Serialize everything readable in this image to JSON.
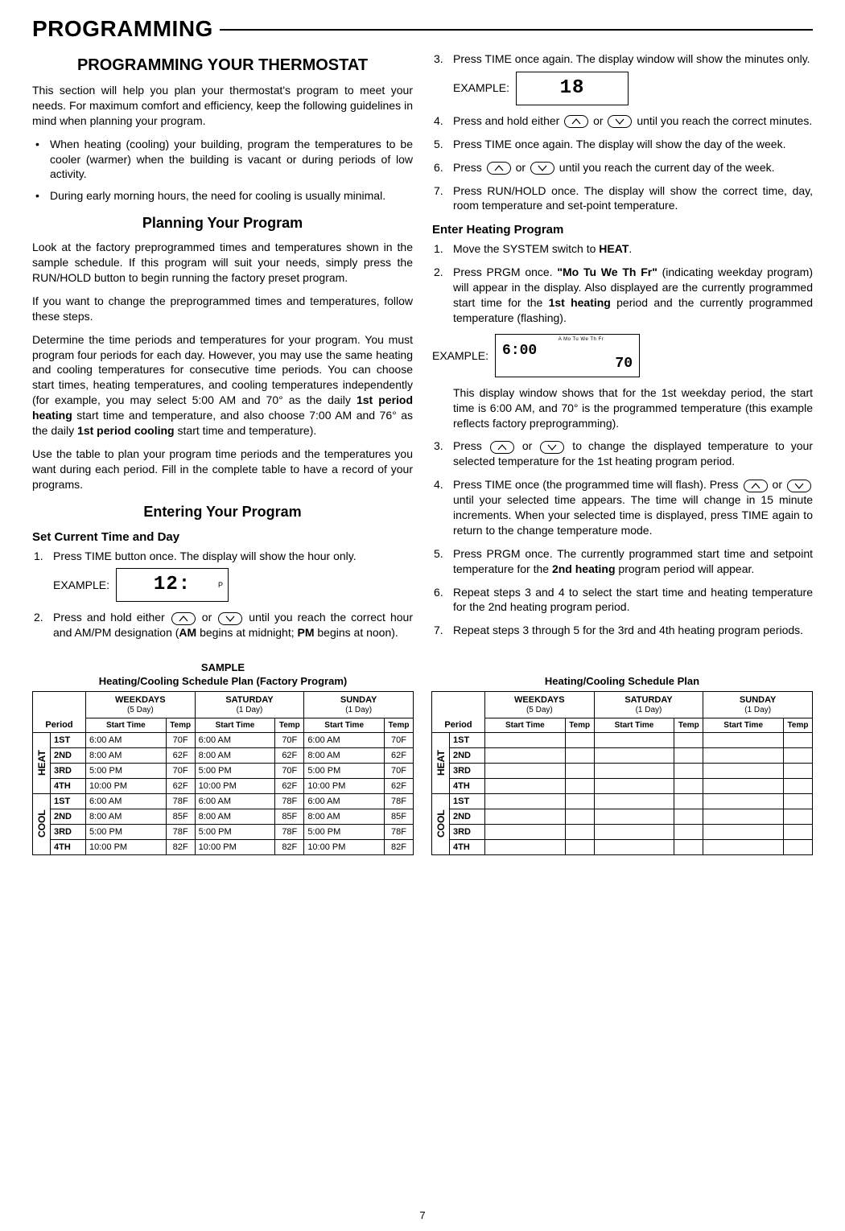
{
  "page": {
    "title": "PROGRAMMING",
    "number": "7"
  },
  "left": {
    "h2": "PROGRAMMING YOUR THERMOSTAT",
    "intro": "This section will help you plan your thermostat's program to meet your needs. For maximum comfort and efficiency, keep the following guidelines in mind when planning your program.",
    "bullets": [
      "When heating (cooling) your building, program the temperatures to be cooler (warmer) when the building is vacant or during periods of low activity.",
      "During early morning hours, the need for cooling is usually minimal."
    ],
    "plan_h3": "Planning Your Program",
    "plan_p1": "Look at the factory preprogrammed times and temperatures shown in the sample schedule. If this program will suit your needs, simply press the RUN/HOLD button to begin running the factory preset program.",
    "plan_p2": "If you want to change the preprogrammed times and temperatures, follow these steps.",
    "plan_p3a": "Determine the time periods and temperatures for your program. You must program four periods for each day. However, you may use the same heating and cooling temperatures for consecutive time periods. You can choose start times, heating temperatures, and cooling temperatures independently (for example, you may select 5:00 AM and 70° as the daily ",
    "plan_p3_b1": "1st period heating",
    "plan_p3b": " start time and temperature, and also choose 7:00 AM and 76° as the daily ",
    "plan_p3_b2": "1st period cooling",
    "plan_p3c": " start time and temperature).",
    "plan_p4": "Use the table to plan your program time periods and the temperatures you want during each period. Fill in the complete table to have a record of your programs.",
    "enter_h3": "Entering Your Program",
    "set_h4": "Set Current Time and Day",
    "step1": "Press TIME button once. The display will show the hour only.",
    "example_label": "EXAMPLE:",
    "lcd1_text": "12:",
    "lcd1_flag": "P",
    "step2a": "Press and hold either ",
    "step2b": " or ",
    "step2c": " until you reach the correct hour and AM/PM designation (",
    "step2_am": "AM",
    "step2d": " begins at midnight; ",
    "step2_pm": "PM",
    "step2e": " begins at noon)."
  },
  "right": {
    "step3": "Press TIME once again. The display window will show the minutes only.",
    "example_label": "EXAMPLE:",
    "lcd2_text": "18",
    "step4a": "Press and hold either ",
    "step4b": " or ",
    "step4c": " until you reach the correct minutes.",
    "step5": "Press TIME once again. The display will show the day of the week.",
    "step6a": "Press ",
    "step6b": " or ",
    "step6c": " until you reach the current day of the week.",
    "step7": "Press RUN/HOLD once. The display will show the correct time, day, room temperature and set-point temperature.",
    "heat_h4": "Enter Heating Program",
    "h1_a": "Move the SYSTEM switch to ",
    "h1_b": "HEAT",
    "h1_c": ".",
    "h2_a": "Press PRGM once. ",
    "h2_b": "\"Mo Tu We Th Fr\"",
    "h2_c": " (indicating weekday program) will appear in the display. Also displayed are the currently programmed start time for the ",
    "h2_d": "1st heating",
    "h2_e": " period and the currently programmed temperature (flashing).",
    "lcd3_days": "A Mo Tu We Th Fr",
    "lcd3_time": "6:00",
    "lcd3_temp": "70",
    "h2_sub": "This display window shows that for the 1st weekday period, the start time is 6:00 AM, and 70° is the programmed temperature (this example reflects factory preprogramming).",
    "h3_a": "Press ",
    "h3_b": " or ",
    "h3_c": " to change the displayed temperature to your selected temperature for the 1st heating program period.",
    "h4_a": "Press TIME once (the programmed time will flash). Press ",
    "h4_b": " or ",
    "h4_c": " until your selected time appears. The time will change in 15 minute increments. When your selected time is displayed, press TIME again to return to the change temperature mode.",
    "h5_a": "Press PRGM once. The currently programmed start time and setpoint temperature for the ",
    "h5_b": "2nd heating",
    "h5_c": " program period will appear.",
    "h6": "Repeat steps 3 and 4 to select the start time and heating temperature for the 2nd heating program period.",
    "h7": "Repeat steps 3 through 5 for the 3rd and 4th heating program periods."
  },
  "tables": {
    "sample_title1": "SAMPLE",
    "sample_title2": "Heating/Cooling Schedule Plan (Factory Program)",
    "blank_title": "Heating/Cooling Schedule Plan",
    "day_headers": [
      {
        "top": "WEEKDAYS",
        "sub": "(5 Day)"
      },
      {
        "top": "SATURDAY",
        "sub": "(1 Day)"
      },
      {
        "top": "SUNDAY",
        "sub": "(1 Day)"
      }
    ],
    "period_label": "Period",
    "sub_start": "Start Time",
    "sub_temp": "Temp",
    "heat_label": "HEAT",
    "cool_label": "COOL",
    "periods": [
      "1ST",
      "2ND",
      "3RD",
      "4TH"
    ],
    "sample_heat": [
      [
        "6:00 AM",
        "70F",
        "6:00 AM",
        "70F",
        "6:00 AM",
        "70F"
      ],
      [
        "8:00 AM",
        "62F",
        "8:00 AM",
        "62F",
        "8:00 AM",
        "62F"
      ],
      [
        "5:00 PM",
        "70F",
        "5:00 PM",
        "70F",
        "5:00 PM",
        "70F"
      ],
      [
        "10:00 PM",
        "62F",
        "10:00 PM",
        "62F",
        "10:00 PM",
        "62F"
      ]
    ],
    "sample_cool": [
      [
        "6:00 AM",
        "78F",
        "6:00 AM",
        "78F",
        "6:00 AM",
        "78F"
      ],
      [
        "8:00 AM",
        "85F",
        "8:00 AM",
        "85F",
        "8:00 AM",
        "85F"
      ],
      [
        "5:00 PM",
        "78F",
        "5:00 PM",
        "78F",
        "5:00 PM",
        "78F"
      ],
      [
        "10:00 PM",
        "82F",
        "10:00 PM",
        "82F",
        "10:00 PM",
        "82F"
      ]
    ]
  }
}
